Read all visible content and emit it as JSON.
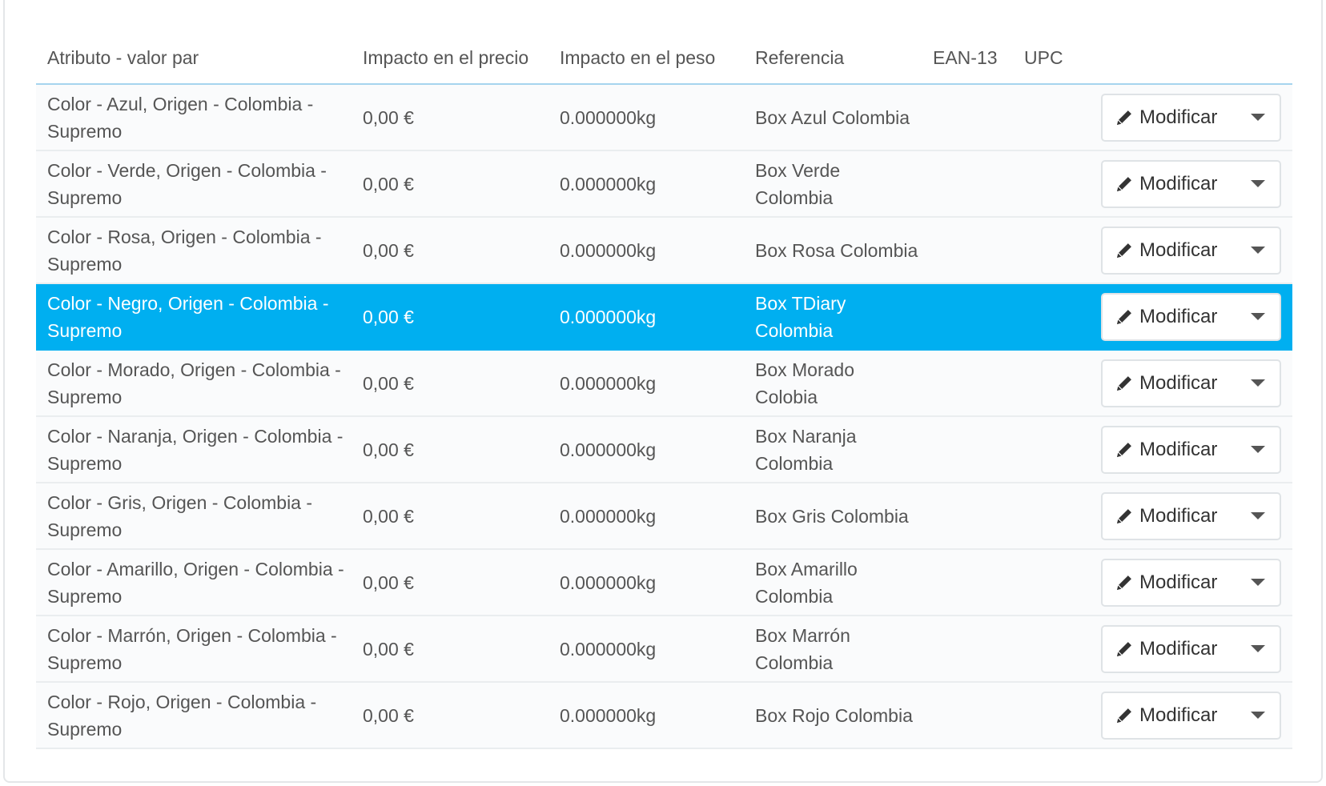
{
  "table": {
    "headers": [
      "Atributo - valor par",
      "Impacto en el precio",
      "Impacto en el peso",
      "Referencia",
      "EAN-13",
      "UPC"
    ],
    "action_label": "Modificar",
    "selected_color": "#00aff0",
    "rows": [
      {
        "attribute": "Color - Azul, Origen - Colombia - Supremo",
        "price": "0,00 €",
        "weight": "0.000000kg",
        "reference": "Box Azul Colombia",
        "ean": "",
        "upc": "",
        "selected": false
      },
      {
        "attribute": "Color - Verde, Origen - Colombia - Supremo",
        "price": "0,00 €",
        "weight": "0.000000kg",
        "reference": "Box Verde Colombia",
        "ean": "",
        "upc": "",
        "selected": false
      },
      {
        "attribute": "Color - Rosa, Origen - Colombia - Supremo",
        "price": "0,00 €",
        "weight": "0.000000kg",
        "reference": "Box Rosa Colombia",
        "ean": "",
        "upc": "",
        "selected": false
      },
      {
        "attribute": "Color - Negro, Origen - Colombia - Supremo",
        "price": "0,00 €",
        "weight": "0.000000kg",
        "reference": "Box TDiary Colombia",
        "ean": "",
        "upc": "",
        "selected": true
      },
      {
        "attribute": "Color - Morado, Origen - Colombia - Supremo",
        "price": "0,00 €",
        "weight": "0.000000kg",
        "reference": "Box Morado Colobia",
        "ean": "",
        "upc": "",
        "selected": false
      },
      {
        "attribute": "Color - Naranja, Origen - Colombia - Supremo",
        "price": "0,00 €",
        "weight": "0.000000kg",
        "reference": "Box Naranja Colombia",
        "ean": "",
        "upc": "",
        "selected": false
      },
      {
        "attribute": "Color - Gris, Origen - Colombia - Supremo",
        "price": "0,00 €",
        "weight": "0.000000kg",
        "reference": "Box Gris Colombia",
        "ean": "",
        "upc": "",
        "selected": false
      },
      {
        "attribute": "Color - Amarillo, Origen - Colombia - Supremo",
        "price": "0,00 €",
        "weight": "0.000000kg",
        "reference": "Box Amarillo Colombia",
        "ean": "",
        "upc": "",
        "selected": false
      },
      {
        "attribute": "Color - Marrón, Origen - Colombia - Supremo",
        "price": "0,00 €",
        "weight": "0.000000kg",
        "reference": "Box Marrón Colombia",
        "ean": "",
        "upc": "",
        "selected": false
      },
      {
        "attribute": "Color - Rojo, Origen - Colombia - Supremo",
        "price": "0,00 €",
        "weight": "0.000000kg",
        "reference": "Box Rojo Colombia",
        "ean": "",
        "upc": "",
        "selected": false
      }
    ]
  }
}
